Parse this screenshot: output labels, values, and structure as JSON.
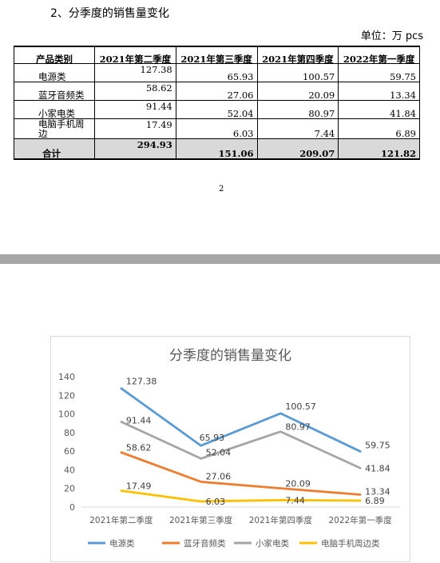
{
  "document": {
    "heading": "2、分季度的销售量变化",
    "unit": "单位：万 pcs",
    "page_number": "2"
  },
  "table": {
    "columns": [
      "产品类别",
      "2021年第二季度",
      "2021年第三季度",
      "2021年第四季度",
      "2022年第一季度"
    ],
    "rows": [
      {
        "label": "电源类",
        "values": [
          "127.38",
          "65.93",
          "100.57",
          "59.75"
        ]
      },
      {
        "label": "蓝牙音频类",
        "values": [
          "58.62",
          "27.06",
          "20.09",
          "13.34"
        ]
      },
      {
        "label": "小家电类",
        "values": [
          "91.44",
          "52.04",
          "80.97",
          "41.84"
        ]
      },
      {
        "label": "电脑手机周边",
        "values": [
          "17.49",
          "6.03",
          "7.44",
          "6.89"
        ]
      }
    ],
    "total": {
      "label": "合计",
      "values": [
        "294.93",
        "151.06",
        "209.07",
        "121.82"
      ]
    }
  },
  "chart_data": {
    "type": "line",
    "title": "分季度的销售量变化",
    "categories": [
      "2021年第二季度",
      "2021年第三季度",
      "2021年第四季度",
      "2022年第一季度"
    ],
    "ylim": [
      0,
      140
    ],
    "yticks": [
      "140",
      "120",
      "100",
      "80",
      "60",
      "40",
      "20",
      "0"
    ],
    "grid": false,
    "legend_position": "bottom",
    "series": [
      {
        "name": "电源类",
        "values": [
          127.38,
          65.93,
          100.57,
          59.75
        ],
        "labels": [
          "127.38",
          "65.93",
          "100.57",
          "59.75"
        ],
        "color": "#5b9bd5"
      },
      {
        "name": "蓝牙音频类",
        "values": [
          58.62,
          27.06,
          20.09,
          13.34
        ],
        "labels": [
          "58.62",
          "27.06",
          "20.09",
          "13.34"
        ],
        "color": "#ed7d31"
      },
      {
        "name": "小家电类",
        "values": [
          91.44,
          52.04,
          80.97,
          41.84
        ],
        "labels": [
          "91.44",
          "52.04",
          "80.97",
          "41.84"
        ],
        "color": "#a5a5a5"
      },
      {
        "name": "电脑手机周边类",
        "values": [
          17.49,
          6.03,
          7.44,
          6.89
        ],
        "labels": [
          "17.49",
          "6.03",
          "7.44",
          "6.89"
        ],
        "color": "#ffc000"
      }
    ]
  }
}
